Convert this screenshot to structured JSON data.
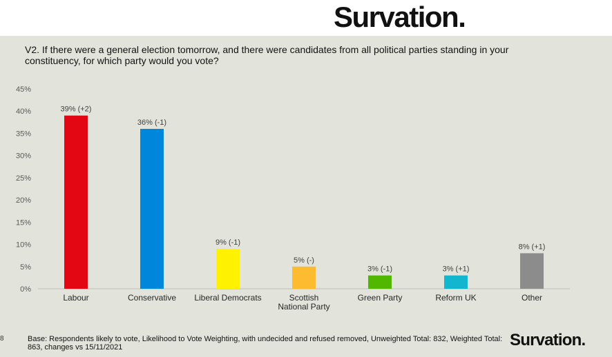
{
  "brand": {
    "logo_text": "Survation."
  },
  "question": "V2. If there were a general election tomorrow, and there were candidates from all political parties standing in your constituency, for which party would you vote?",
  "chart_data": {
    "type": "bar",
    "categories": [
      "Labour",
      "Conservative",
      "Liberal Democrats",
      "Scottish National Party",
      "Green Party",
      "Reform UK",
      "Other"
    ],
    "values": [
      39,
      36,
      9,
      5,
      3,
      3,
      8
    ],
    "data_labels": [
      "39% (+2)",
      "36% (-1)",
      "9% (-1)",
      "5% (-)",
      "3% (-1)",
      "3% (+1)",
      "8% (+1)"
    ],
    "colors": [
      "#e30613",
      "#0087dc",
      "#fff200",
      "#fdbb30",
      "#52b700",
      "#12b6cf",
      "#8c8c8c"
    ],
    "ylim": [
      0,
      45
    ],
    "yticks": [
      "0%",
      "5%",
      "10%",
      "15%",
      "20%",
      "25%",
      "30%",
      "35%",
      "40%",
      "45%"
    ],
    "grid": false
  },
  "footer": {
    "page_number": "8",
    "base_text": "Base: Respondents likely to vote, Likelihood to Vote Weighting, with undecided and refused removed, Unweighted Total: 832, Weighted Total: 863, changes vs 15/11/2021"
  }
}
